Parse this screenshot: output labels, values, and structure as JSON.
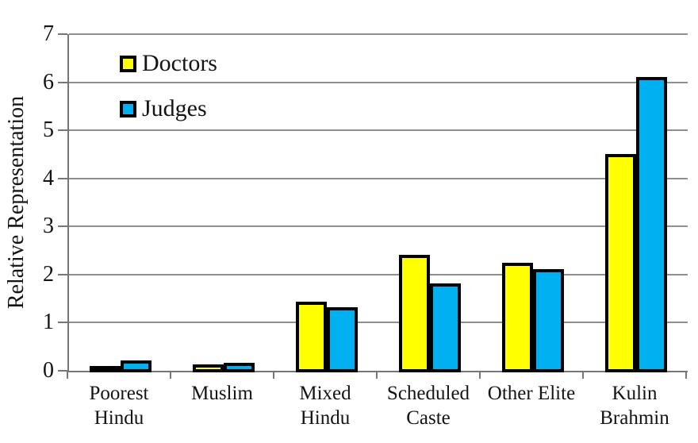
{
  "chart_data": {
    "type": "bar",
    "title": "",
    "ylabel": "Relative Representation",
    "xlabel": "",
    "ylim": [
      0,
      7
    ],
    "yticks": [
      0,
      1,
      2,
      3,
      4,
      5,
      6,
      7
    ],
    "grid": true,
    "legend_position": "inside-top-left",
    "categories": [
      "Poorest Hindu",
      "Muslim",
      "Mixed Hindu",
      "Scheduled Caste",
      "Other Elite",
      "Kulin Brahmin"
    ],
    "category_label_lines": [
      [
        "Poorest",
        "Hindu"
      ],
      [
        "Muslim"
      ],
      [
        "Mixed",
        "Hindu"
      ],
      [
        "Scheduled",
        "Caste"
      ],
      [
        "Other Elite"
      ],
      [
        "Kulin",
        "Brahmin"
      ]
    ],
    "series": [
      {
        "name": "Doctors",
        "color": "#FFFF00",
        "values": [
          0.07,
          0.1,
          1.4,
          2.38,
          2.22,
          4.48
        ]
      },
      {
        "name": "Judges",
        "color": "#00B0F0",
        "values": [
          0.18,
          0.14,
          1.28,
          1.78,
          2.08,
          6.08
        ]
      }
    ],
    "colors": {
      "bar_border": "#000000",
      "gridline": "#8f8f8f",
      "axis": "#767676",
      "text": "#141414",
      "background": "#ffffff"
    }
  }
}
